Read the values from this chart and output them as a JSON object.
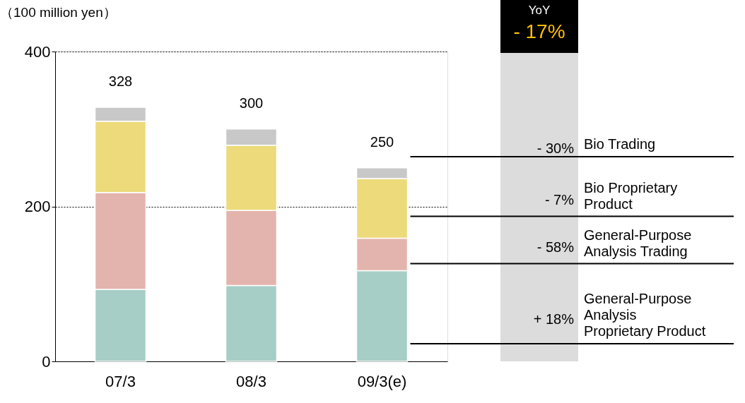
{
  "chart_data": {
    "type": "bar",
    "stacked": true,
    "ylabel": "（100 million yen）",
    "categories": [
      "07/3",
      "08/3",
      "09/3(e)"
    ],
    "series": [
      {
        "name": "General-Purpose Analysis Proprietary Product",
        "color": "#a6cec6",
        "values": [
          93,
          98,
          117
        ]
      },
      {
        "name": "General-Purpose Analysis Trading",
        "color": "#e3b4ad",
        "values": [
          125,
          97,
          42
        ]
      },
      {
        "name": "Bio Proprietary Product",
        "color": "#ecda7b",
        "values": [
          92,
          84,
          77
        ]
      },
      {
        "name": "Bio Trading",
        "color": "#c8c8c8",
        "values": [
          18,
          21,
          14
        ]
      }
    ],
    "totals": [
      "328",
      "300",
      "250"
    ],
    "ylim": [
      0,
      400
    ],
    "yticks": [
      0,
      200,
      400
    ],
    "grid": "y",
    "annotations": [
      "YoY",
      "- 17%",
      "+ 18%",
      "- 58%",
      "- 7%",
      "- 30%"
    ]
  }
}
